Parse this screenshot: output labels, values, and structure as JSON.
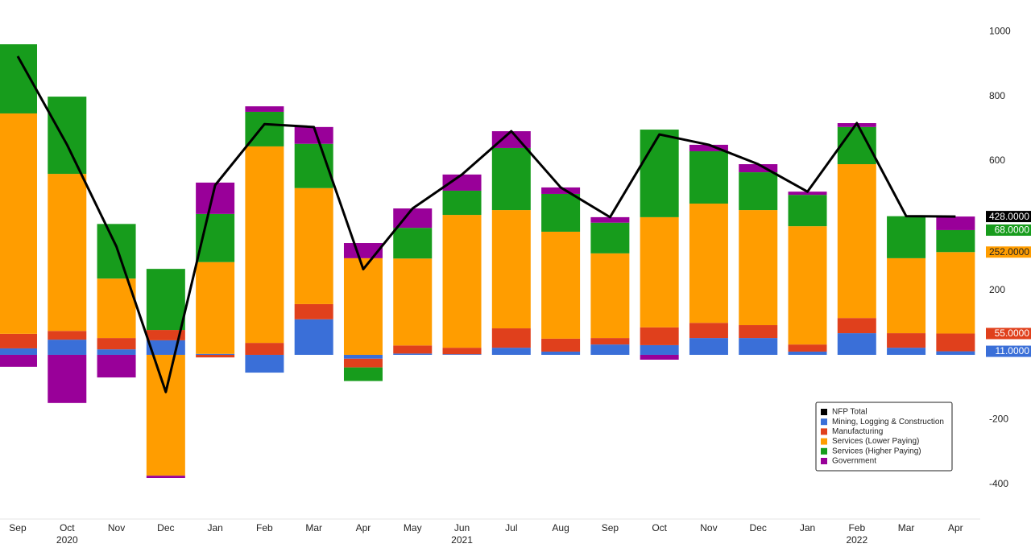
{
  "chart_data": {
    "type": "bar",
    "stacked": true,
    "categories": [
      "Sep",
      "Oct",
      "Nov",
      "Dec",
      "Jan",
      "Feb",
      "Mar",
      "Apr",
      "May",
      "Jun",
      "Jul",
      "Aug",
      "Sep",
      "Oct",
      "Nov",
      "Dec",
      "Jan",
      "Feb",
      "Mar",
      "Apr"
    ],
    "years": [
      null,
      "2020",
      null,
      null,
      null,
      null,
      null,
      null,
      null,
      "2021",
      null,
      null,
      null,
      null,
      null,
      null,
      null,
      "2022",
      null,
      null
    ],
    "series": [
      {
        "name": "NFP Total",
        "type": "line",
        "color": "#000000",
        "values": [
          924,
          650,
          335,
          -115,
          525,
          714,
          705,
          265,
          453,
          558,
          692,
          518,
          426,
          682,
          650,
          590,
          505,
          717,
          429,
          428
        ],
        "value_labels": [
          null,
          null,
          null,
          null,
          null,
          null,
          null,
          null,
          null,
          null,
          null,
          null,
          null,
          null,
          null,
          null,
          null,
          null,
          null,
          "428.0000"
        ]
      },
      {
        "name": "Mining, Logging & Construction",
        "type": "bar",
        "color": "#3a6fd8",
        "values": [
          20,
          47,
          17,
          45,
          3,
          -55,
          110,
          -12,
          4,
          2,
          22,
          10,
          32,
          30,
          52,
          52,
          10,
          67,
          22,
          11
        ],
        "value_labels": [
          null,
          null,
          null,
          null,
          null,
          null,
          null,
          null,
          null,
          null,
          null,
          null,
          null,
          null,
          null,
          null,
          null,
          null,
          null,
          "11.0000"
        ]
      },
      {
        "name": "Manufacturing",
        "type": "bar",
        "color": "#e0401c",
        "values": [
          45,
          27,
          35,
          32,
          -8,
          37,
          47,
          -27,
          25,
          20,
          60,
          40,
          20,
          55,
          47,
          40,
          22,
          47,
          45,
          55
        ],
        "value_labels": [
          null,
          null,
          null,
          null,
          null,
          null,
          null,
          null,
          null,
          null,
          null,
          null,
          null,
          null,
          null,
          null,
          null,
          null,
          null,
          "55.0000"
        ]
      },
      {
        "name": "Services (Lower Paying)",
        "type": "bar",
        "color": "#ff9d00",
        "values": [
          682,
          486,
          184,
          -374,
          284,
          608,
          359,
          299,
          269,
          411,
          366,
          331,
          262,
          341,
          369,
          356,
          366,
          476,
          232,
          252
        ],
        "value_labels": [
          null,
          null,
          null,
          null,
          null,
          null,
          null,
          null,
          null,
          null,
          null,
          null,
          null,
          null,
          null,
          null,
          null,
          null,
          null,
          "252.0000"
        ]
      },
      {
        "name": "Services (Higher Paying)",
        "type": "bar",
        "color": "#179c1c",
        "values": [
          214,
          239,
          169,
          189,
          149,
          107,
          137,
          -42,
          95,
          75,
          192,
          117,
          95,
          271,
          162,
          117,
          97,
          115,
          130,
          68
        ],
        "value_labels": [
          null,
          null,
          null,
          null,
          null,
          null,
          null,
          null,
          null,
          null,
          null,
          null,
          null,
          null,
          null,
          null,
          null,
          null,
          null,
          "68.0000"
        ]
      },
      {
        "name": "Government",
        "type": "bar",
        "color": "#990099",
        "values": [
          -37,
          -149,
          -70,
          -7,
          97,
          17,
          52,
          47,
          60,
          50,
          52,
          20,
          17,
          -15,
          20,
          25,
          10,
          12,
          0,
          42
        ]
      }
    ],
    "ylim": [
      -508,
      1098
    ],
    "yticks": [
      -400,
      -200,
      200,
      600,
      800,
      1000
    ],
    "legend": "bottom-right"
  }
}
